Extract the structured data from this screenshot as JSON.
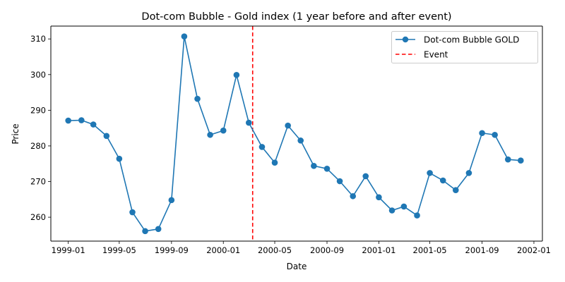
{
  "chart_data": {
    "type": "line",
    "title": "Dot-com Bubble - Gold index (1 year before and after event)",
    "xlabel": "Date",
    "ylabel": "Price",
    "ylim": [
      253.3,
      313.6
    ],
    "xlim": [
      "1998-11-21",
      "2002-01-21"
    ],
    "grid": false,
    "legend_position": "top-right",
    "x_ticks": [
      {
        "date": "1999-01-01",
        "label": "1999-01"
      },
      {
        "date": "1999-05-01",
        "label": "1999-05"
      },
      {
        "date": "1999-09-01",
        "label": "1999-09"
      },
      {
        "date": "2000-01-01",
        "label": "2000-01"
      },
      {
        "date": "2000-05-01",
        "label": "2000-05"
      },
      {
        "date": "2000-09-01",
        "label": "2000-09"
      },
      {
        "date": "2001-01-01",
        "label": "2001-01"
      },
      {
        "date": "2001-05-01",
        "label": "2001-05"
      },
      {
        "date": "2001-09-01",
        "label": "2001-09"
      },
      {
        "date": "2002-01-01",
        "label": "2002-01"
      }
    ],
    "y_ticks": [
      {
        "value": 260,
        "label": "260"
      },
      {
        "value": 270,
        "label": "270"
      },
      {
        "value": 280,
        "label": "280"
      },
      {
        "value": 290,
        "label": "290"
      },
      {
        "value": 300,
        "label": "300"
      },
      {
        "value": 310,
        "label": "310"
      }
    ],
    "series": [
      {
        "name": "Dot-com Bubble GOLD",
        "color": "#1f77b4",
        "marker": "circle",
        "x": [
          "1999-01-01",
          "1999-02-01",
          "1999-03-01",
          "1999-04-01",
          "1999-05-01",
          "1999-06-01",
          "1999-07-01",
          "1999-08-01",
          "1999-09-01",
          "1999-10-01",
          "1999-11-01",
          "1999-12-01",
          "2000-01-01",
          "2000-02-01",
          "2000-03-01",
          "2000-04-01",
          "2000-05-01",
          "2000-06-01",
          "2000-07-01",
          "2000-08-01",
          "2000-09-01",
          "2000-10-01",
          "2000-11-01",
          "2000-12-01",
          "2001-01-01",
          "2001-02-01",
          "2001-03-01",
          "2001-04-01",
          "2001-05-01",
          "2001-06-01",
          "2001-07-01",
          "2001-08-01",
          "2001-09-01",
          "2001-10-01",
          "2001-11-01",
          "2001-12-01"
        ],
        "values": [
          287.1,
          287.2,
          286.0,
          282.8,
          276.4,
          261.4,
          256.1,
          256.7,
          264.8,
          310.7,
          293.2,
          283.1,
          284.3,
          299.9,
          286.5,
          279.7,
          275.3,
          285.7,
          281.5,
          274.4,
          273.6,
          270.1,
          265.9,
          271.5,
          265.6,
          261.9,
          263.0,
          260.5,
          272.4,
          270.3,
          267.6,
          272.4,
          283.6,
          283.1,
          276.2,
          275.9
        ]
      }
    ],
    "event": {
      "name": "Event",
      "date": "2000-03-10",
      "color": "#ff0000",
      "style": "dashed"
    }
  }
}
